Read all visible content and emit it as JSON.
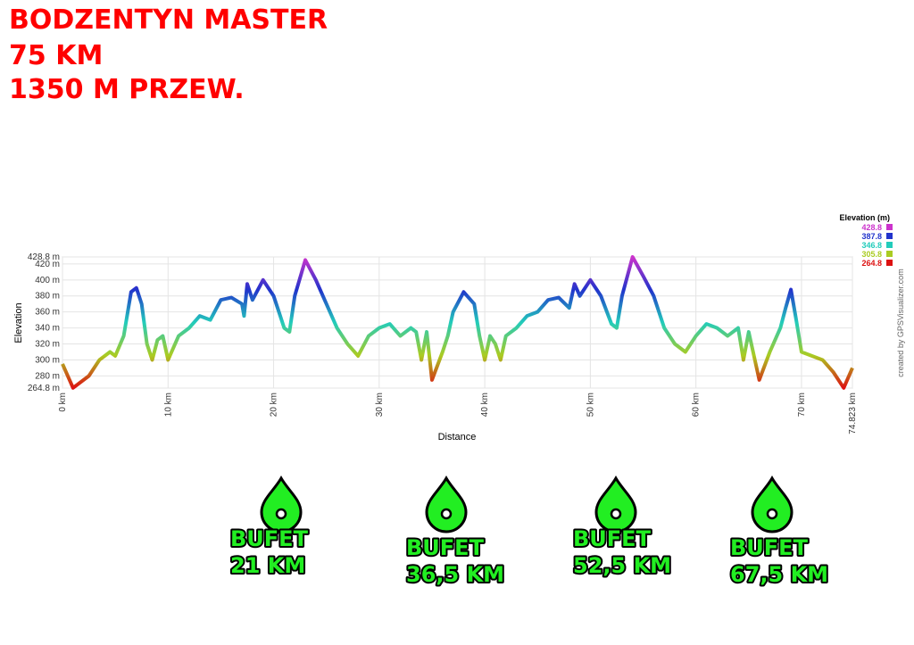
{
  "title_lines": [
    "BODZENTYN MASTER",
    "75 KM",
    "1350 M PRZEW."
  ],
  "chart_data": {
    "type": "line",
    "x_label": "Distance",
    "y_label": "Elevation",
    "credit": "created by GPSVisualizer.com",
    "legend_title": "Elevation (m)",
    "legend": [
      {
        "label": "428.8",
        "color": "#cc33cc"
      },
      {
        "label": "387.8",
        "color": "#2233cc"
      },
      {
        "label": "346.8",
        "color": "#22ccbb"
      },
      {
        "label": "305.8",
        "color": "#aacc22"
      },
      {
        "label": "264.8",
        "color": "#dd1111"
      }
    ],
    "color_stops": [
      428.8,
      387.8,
      346.8,
      305.8,
      264.8
    ],
    "x": [
      0,
      1,
      2.5,
      3.5,
      4.5,
      5,
      5.8,
      6.5,
      7,
      7.5,
      8,
      8.5,
      9,
      9.5,
      10,
      11,
      12,
      13,
      14,
      15,
      16,
      17,
      17.2,
      17.5,
      18,
      19,
      20,
      20.5,
      21,
      21.5,
      22,
      23,
      24,
      25,
      26,
      27,
      28,
      29,
      30,
      31,
      32,
      33,
      33.5,
      34,
      34.5,
      35,
      36,
      36.5,
      37,
      38,
      39,
      39.5,
      40,
      40.5,
      41,
      41.5,
      42,
      43,
      44,
      45,
      46,
      47,
      48,
      48.5,
      49,
      50,
      51,
      52,
      52.5,
      53,
      54,
      55,
      56,
      57,
      58,
      59,
      60,
      61,
      62,
      63,
      64,
      64.5,
      65,
      66,
      67,
      68,
      68.5,
      69,
      69.5,
      70,
      71,
      72,
      73,
      74,
      74.823
    ],
    "values": [
      295,
      265,
      280,
      300,
      310,
      305,
      330,
      385,
      390,
      370,
      320,
      300,
      325,
      330,
      300,
      330,
      340,
      355,
      350,
      375,
      378,
      370,
      355,
      395,
      375,
      400,
      380,
      360,
      340,
      335,
      380,
      425,
      400,
      370,
      340,
      320,
      305,
      330,
      340,
      345,
      330,
      340,
      335,
      300,
      335,
      275,
      310,
      330,
      360,
      385,
      370,
      330,
      300,
      330,
      320,
      300,
      330,
      340,
      355,
      360,
      375,
      378,
      365,
      395,
      380,
      400,
      380,
      345,
      340,
      380,
      428.8,
      405,
      380,
      340,
      320,
      310,
      330,
      345,
      340,
      330,
      340,
      300,
      335,
      275,
      310,
      340,
      365,
      388,
      350,
      310,
      305,
      300,
      285,
      265,
      290
    ],
    "xlim": [
      0,
      74.823
    ],
    "ylim": [
      264.8,
      428.8
    ],
    "xticks": [
      {
        "value": 0,
        "label": "0 km"
      },
      {
        "value": 10,
        "label": "10 km"
      },
      {
        "value": 20,
        "label": "20 km"
      },
      {
        "value": 30,
        "label": "30 km"
      },
      {
        "value": 40,
        "label": "40 km"
      },
      {
        "value": 50,
        "label": "50 km"
      },
      {
        "value": 60,
        "label": "60 km"
      },
      {
        "value": 70,
        "label": "70 km"
      },
      {
        "value": 74.823,
        "label": "74.823 km"
      }
    ],
    "yticks": [
      {
        "value": 264.8,
        "label": "264.8 m"
      },
      {
        "value": 280,
        "label": "280 m"
      },
      {
        "value": 300,
        "label": "300 m"
      },
      {
        "value": 320,
        "label": "320 m"
      },
      {
        "value": 340,
        "label": "340 m"
      },
      {
        "value": 360,
        "label": "360 m"
      },
      {
        "value": 380,
        "label": "380 m"
      },
      {
        "value": 400,
        "label": "400 m"
      },
      {
        "value": 420,
        "label": "420 m"
      },
      {
        "value": 428.8,
        "label": "428.8 m"
      }
    ],
    "grid": true
  },
  "buffets": [
    {
      "label": "BUFET",
      "distance": "21 KM"
    },
    {
      "label": "BUFET",
      "distance": "36,5 KM"
    },
    {
      "label": "BUFET",
      "distance": "52,5 KM"
    },
    {
      "label": "BUFET",
      "distance": "67,5 KM"
    }
  ]
}
